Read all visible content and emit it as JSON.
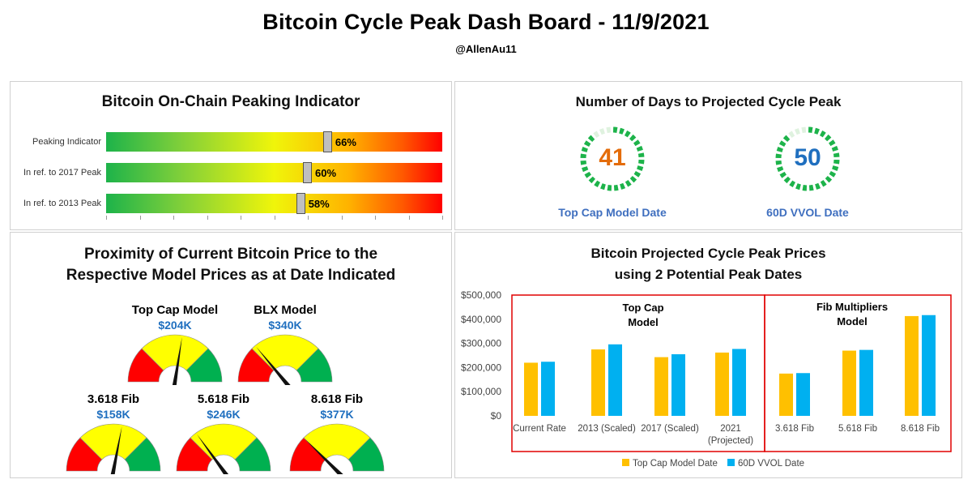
{
  "header": {
    "title": "Bitcoin Cycle Peak Dash Board - 11/9/2021",
    "author": "@AllenAu11"
  },
  "onchain": {
    "title": "Bitcoin On-Chain Peaking Indicator",
    "bars": [
      {
        "label": "Peaking Indicator",
        "value": 66,
        "display": "66%"
      },
      {
        "label": "In ref. to 2017 Peak",
        "value": 60,
        "display": "60%"
      },
      {
        "label": "In ref. to 2013 Peak",
        "value": 58,
        "display": "58%"
      }
    ]
  },
  "days": {
    "title": "Number of Days to Projected Cycle Peak",
    "items": [
      {
        "label": "Top Cap Model Date",
        "value": "41",
        "color": "#e46c0a",
        "fraction": 0.88
      },
      {
        "label": "60D VVOL Date",
        "value": "50",
        "color": "#1f6fbf",
        "fraction": 0.86
      }
    ]
  },
  "proximity": {
    "title_line1": "Proximity of Current Bitcoin Price to the",
    "title_line2": "Respective Model Prices as at Date Indicated",
    "gauges": [
      {
        "name": "Top Cap Model",
        "value": "$204K",
        "fraction": 0.55
      },
      {
        "name": "BLX Model",
        "value": "$340K",
        "fraction": 0.28
      },
      {
        "name": "3.618 Fib",
        "value": "$158K",
        "fraction": 0.56
      },
      {
        "name": "5.618 Fib",
        "value": "$246K",
        "fraction": 0.3
      },
      {
        "name": "8.618 Fib",
        "value": "$377K",
        "fraction": 0.25
      }
    ]
  },
  "projected": {
    "title_line1": "Bitcoin Projected Cycle Peak Prices",
    "title_line2": "using 2 Potential Peak Dates",
    "group1_label_line1": "Top Cap",
    "group1_label_line2": "Model",
    "group2_label_line1": "Fib Multipliers",
    "group2_label_line2": "Model"
  },
  "chart_data": {
    "type": "bar",
    "categories": [
      "Current Rate",
      "2013 (Scaled)",
      "2017 (Scaled)",
      "2021\n(Projected)",
      "3.618 Fib",
      "5.618 Fib",
      "8.618 Fib"
    ],
    "series": [
      {
        "name": "Top Cap Model Date",
        "color": "#ffc000",
        "values": [
          220000,
          275000,
          243000,
          262000,
          175000,
          270000,
          413000
        ]
      },
      {
        "name": "60D VVOL Date",
        "color": "#00b0f0",
        "values": [
          224000,
          296000,
          255000,
          277000,
          177000,
          273000,
          417000
        ]
      }
    ],
    "yticks": [
      "$0",
      "$100,000",
      "$200,000",
      "$300,000",
      "$400,000",
      "$500,000"
    ],
    "ylim": [
      0,
      500000
    ],
    "legend": "bottom"
  }
}
